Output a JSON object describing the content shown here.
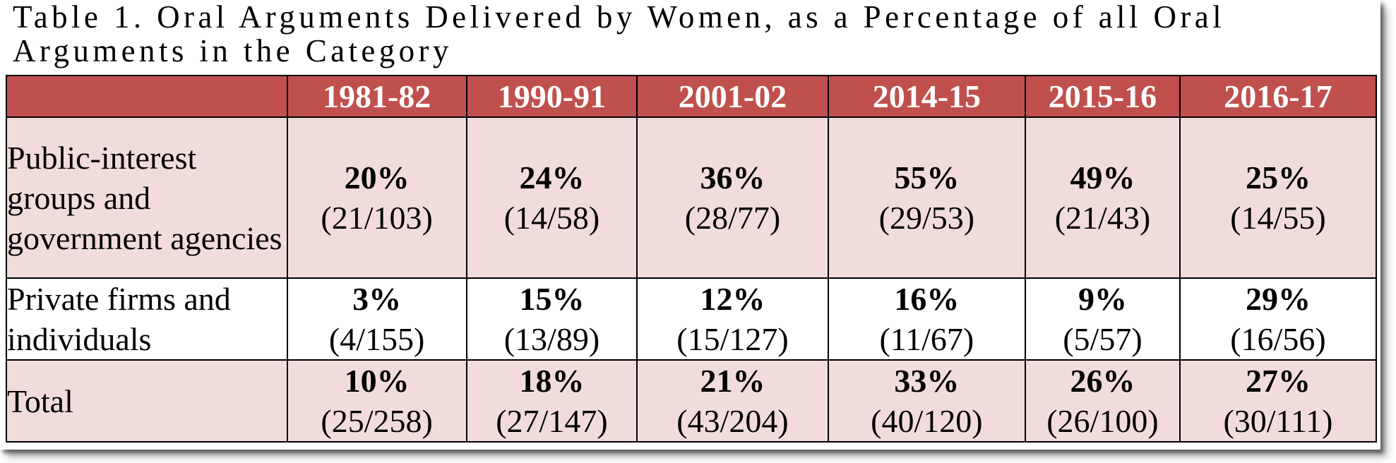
{
  "title": "Table 1.  Oral Arguments Delivered by Women, as a Percentage of all Oral Arguments in the Category",
  "colors": {
    "header_bg": "#c0504d",
    "shaded_row_bg": "#f2dcdb",
    "plain_row_bg": "#ffffff"
  },
  "table": {
    "corner": "",
    "columns": [
      "1981-82",
      "1990-91",
      "2001-02",
      "2014-15",
      "2015-16",
      "2016-17"
    ],
    "rows": [
      {
        "label": "Public-interest groups and government agencies",
        "cells": [
          {
            "pct": "20%",
            "frac": "(21/103)"
          },
          {
            "pct": "24%",
            "frac": "(14/58)"
          },
          {
            "pct": "36%",
            "frac": "(28/77)"
          },
          {
            "pct": "55%",
            "frac": "(29/53)"
          },
          {
            "pct": "49%",
            "frac": "(21/43)"
          },
          {
            "pct": "25%",
            "frac": "(14/55)"
          }
        ]
      },
      {
        "label": "Private firms and individuals",
        "cells": [
          {
            "pct": "3%",
            "frac": "(4/155)"
          },
          {
            "pct": "15%",
            "frac": "(13/89)"
          },
          {
            "pct": "12%",
            "frac": "(15/127)"
          },
          {
            "pct": "16%",
            "frac": "(11/67)"
          },
          {
            "pct": "9%",
            "frac": "(5/57)"
          },
          {
            "pct": "29%",
            "frac": "(16/56)"
          }
        ]
      },
      {
        "label": "Total",
        "cells": [
          {
            "pct": "10%",
            "frac": "(25/258)"
          },
          {
            "pct": "18%",
            "frac": "(27/147)"
          },
          {
            "pct": "21%",
            "frac": "(43/204)"
          },
          {
            "pct": "33%",
            "frac": "(40/120)"
          },
          {
            "pct": "26%",
            "frac": "(26/100)"
          },
          {
            "pct": "27%",
            "frac": "(30/111)"
          }
        ]
      }
    ]
  }
}
